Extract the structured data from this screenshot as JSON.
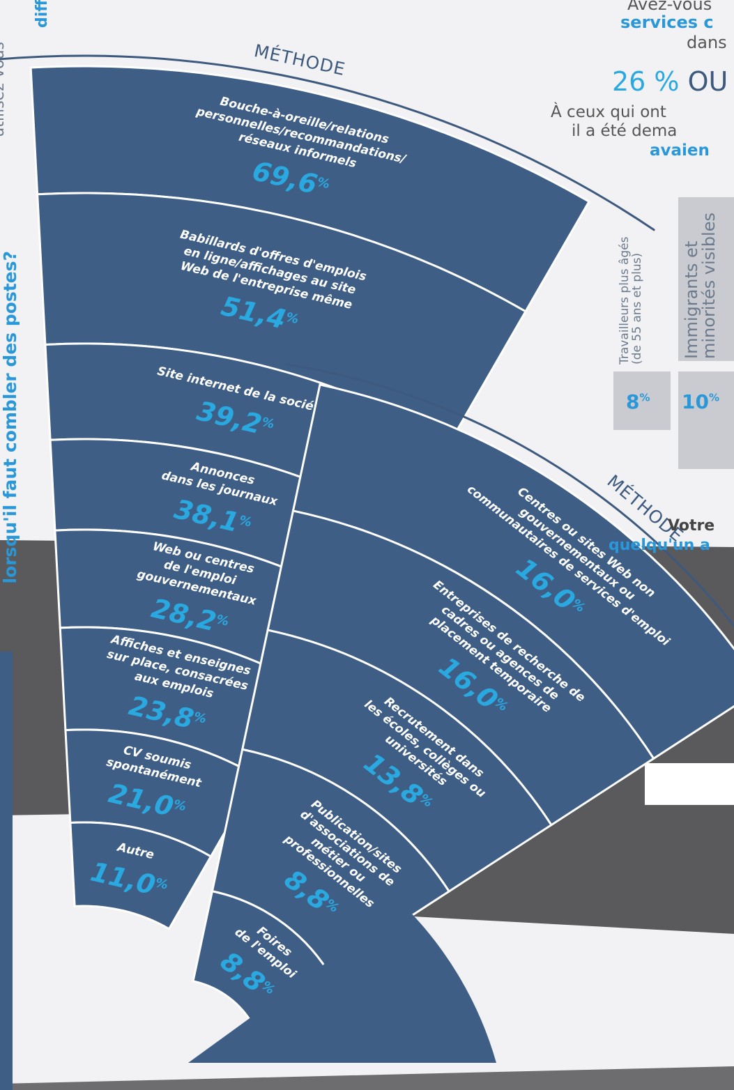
{
  "left_vertical": {
    "line1": "lorsqu'il faut combler des postes?",
    "line2": "utilisez-vous",
    "top_fragment": "diff"
  },
  "fan1": {
    "title": "MÉTHODE",
    "items": [
      {
        "label": [
          "Bouche-à-oreille/relations",
          "personnelles/recommandations/",
          "réseaux informels"
        ],
        "value": "69,6"
      },
      {
        "label": [
          "Babillards d'offres d'emplois",
          "en ligne/affichages au site",
          "Web de l'entreprise même"
        ],
        "value": "51,4"
      },
      {
        "label": [
          "Site internet de la société"
        ],
        "value": "39,2"
      },
      {
        "label": [
          "Annonces",
          "dans les journaux"
        ],
        "value": "38,1"
      },
      {
        "label": [
          "Web ou centres",
          "de l'emploi",
          "gouvernementaux"
        ],
        "value": "28,2"
      },
      {
        "label": [
          "Affiches et enseignes",
          "sur place, consacrées",
          "aux emplois"
        ],
        "value": "23,8"
      },
      {
        "label": [
          "CV soumis",
          "spontanément"
        ],
        "value": "21,0"
      },
      {
        "label": [
          "Autre"
        ],
        "value": "11,0"
      }
    ]
  },
  "fan2": {
    "title": "MÉTHODE",
    "items": [
      {
        "label": [
          "Centres ou sites Web non",
          "gouvernementaux ou",
          "communautaires de services d'emploi"
        ],
        "value": "16,0"
      },
      {
        "label": [
          "Entreprises de recherche de",
          "cadres ou agences de",
          "placement temporaire"
        ],
        "value": "16,0"
      },
      {
        "label": [
          "Recrutement dans",
          "les écoles, collèges ou",
          "universités"
        ],
        "value": "13,8"
      },
      {
        "label": [
          "Publication/sites",
          "d'associations de",
          "métier ou",
          "professionnelles"
        ],
        "value": "8,8"
      },
      {
        "label": [
          "Foires",
          "de l'emploi"
        ],
        "value": "8,8"
      }
    ]
  },
  "pct_sign": "%",
  "right_panel": {
    "q_line1": "Avez-vous",
    "q_line2": "services c",
    "q_line3": "dans",
    "answer_num": "26 %",
    "answer_word": "OU",
    "follow1": "À ceux qui ont",
    "follow2": "il a été dema",
    "follow3": "avaien",
    "bars": [
      {
        "label_line1": "Travailleurs plus âgés",
        "label_line2": "(de 55 ans et plus)",
        "value": "8",
        "sign": "%"
      },
      {
        "label_line1": "Immigrants et",
        "label_line2": "minorités visibles",
        "value": "10",
        "sign": "%"
      }
    ],
    "bottom_q1": "Votre",
    "bottom_q2": "quelqu'un a"
  },
  "colors": {
    "segment": "#3f5e86",
    "accent": "#2aa8e0",
    "background": "#f2f2f4",
    "road": "#5a5a5c"
  }
}
